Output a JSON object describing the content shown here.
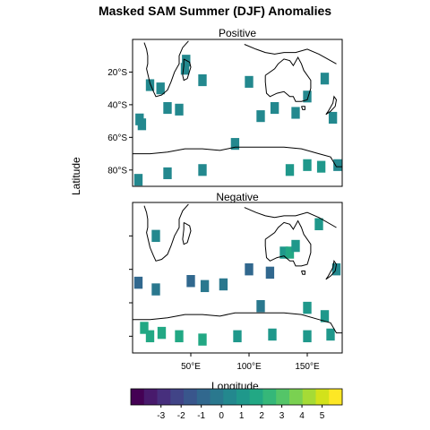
{
  "chart_data": {
    "type": "heatmap",
    "title": "Masked SAM Summer (DJF) Anomalies",
    "xlabel": "Longitude",
    "ylabel": "Latitude",
    "panels": [
      {
        "name": "Positive",
        "cells": [
          {
            "lon": 45,
            "lat": -18,
            "v": 0.3
          },
          {
            "lon": 46,
            "lat": -13,
            "v": 0.3
          },
          {
            "lon": 15,
            "lat": -28,
            "v": 0.4
          },
          {
            "lon": 24,
            "lat": -30,
            "v": 0.4
          },
          {
            "lon": 30,
            "lat": -42,
            "v": 0.5
          },
          {
            "lon": 40,
            "lat": -43,
            "v": 0.4
          },
          {
            "lon": 6,
            "lat": -49,
            "v": 0.6
          },
          {
            "lon": 8,
            "lat": -52,
            "v": 0.5
          },
          {
            "lon": 60,
            "lat": -25,
            "v": 0.6
          },
          {
            "lon": 100,
            "lat": -26,
            "v": 0.5
          },
          {
            "lon": 110,
            "lat": -47,
            "v": 0.5
          },
          {
            "lon": 122,
            "lat": -42,
            "v": 0.5
          },
          {
            "lon": 140,
            "lat": -45,
            "v": 0.4
          },
          {
            "lon": 150,
            "lat": -35,
            "v": 0.3
          },
          {
            "lon": 165,
            "lat": -24,
            "v": 0.4
          },
          {
            "lon": 172,
            "lat": -48,
            "v": 0.4
          },
          {
            "lon": 176,
            "lat": -77,
            "v": 0.6
          },
          {
            "lon": 150,
            "lat": -77,
            "v": 1.0
          },
          {
            "lon": 162,
            "lat": -78,
            "v": 1.1
          },
          {
            "lon": 135,
            "lat": -80,
            "v": 0.8
          },
          {
            "lon": 88,
            "lat": -64,
            "v": 0.6
          },
          {
            "lon": 30,
            "lat": -82,
            "v": 0.4
          },
          {
            "lon": 60,
            "lat": -80,
            "v": 0.5
          },
          {
            "lon": 5,
            "lat": -86,
            "v": 0.4
          }
        ]
      },
      {
        "name": "Negative",
        "cells": [
          {
            "lon": 5,
            "lat": -48,
            "v": -0.6
          },
          {
            "lon": 20,
            "lat": -52,
            "v": -0.5
          },
          {
            "lon": 50,
            "lat": -47,
            "v": -0.6
          },
          {
            "lon": 62,
            "lat": -50,
            "v": -0.5
          },
          {
            "lon": 78,
            "lat": -49,
            "v": -0.5
          },
          {
            "lon": 100,
            "lat": -40,
            "v": -0.6
          },
          {
            "lon": 118,
            "lat": -42,
            "v": -0.6
          },
          {
            "lon": 110,
            "lat": -62,
            "v": -0.5
          },
          {
            "lon": 130,
            "lat": -30,
            "v": 1.2
          },
          {
            "lon": 135,
            "lat": -30,
            "v": 1.5
          },
          {
            "lon": 140,
            "lat": -26,
            "v": 1.1
          },
          {
            "lon": 160,
            "lat": -13,
            "v": 0.8
          },
          {
            "lon": 175,
            "lat": -40,
            "v": 0.6
          },
          {
            "lon": 150,
            "lat": -63,
            "v": 1.4
          },
          {
            "lon": 165,
            "lat": -68,
            "v": 1.3
          },
          {
            "lon": 10,
            "lat": -75,
            "v": 1.8
          },
          {
            "lon": 15,
            "lat": -80,
            "v": 2.0
          },
          {
            "lon": 25,
            "lat": -78,
            "v": 1.7
          },
          {
            "lon": 40,
            "lat": -80,
            "v": 1.5
          },
          {
            "lon": 60,
            "lat": -82,
            "v": 1.6
          },
          {
            "lon": 90,
            "lat": -80,
            "v": 1.4
          },
          {
            "lon": 120,
            "lat": -79,
            "v": 1.3
          },
          {
            "lon": 150,
            "lat": -80,
            "v": 1.4
          },
          {
            "lon": 170,
            "lat": -79,
            "v": 1.3
          },
          {
            "lon": 20,
            "lat": -20,
            "v": 0.2
          }
        ]
      }
    ],
    "xlim": [
      0,
      180
    ],
    "ylim": [
      -90,
      0
    ],
    "xticks": [
      50,
      100,
      150
    ],
    "xtick_labels": [
      "50°E",
      "100°E",
      "150°E"
    ],
    "yticks": [
      -20,
      -40,
      -60,
      -80
    ],
    "ytick_labels": [
      "20°S",
      "40°S",
      "60°S",
      "80°S"
    ],
    "colorbar": {
      "ticks": [
        -3,
        -2,
        -1,
        0,
        1,
        2,
        3,
        4,
        5
      ],
      "range": [
        -4.5,
        6
      ],
      "colors": [
        "#440154",
        "#481a6c",
        "#472f7d",
        "#414487",
        "#39568c",
        "#31688e",
        "#2a788e",
        "#23888e",
        "#1f988b",
        "#22a884",
        "#35b779",
        "#54c568",
        "#7ad151",
        "#a5db36",
        "#d2e21b",
        "#fde725"
      ]
    },
    "grid": false,
    "legend": "colorbar-bottom"
  }
}
